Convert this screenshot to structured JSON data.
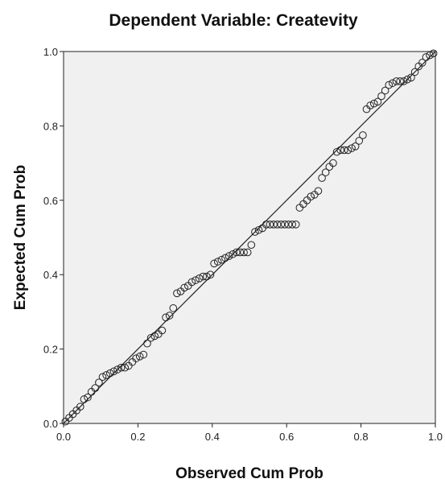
{
  "chart_data": {
    "type": "scatter",
    "title": "Dependent Variable: Createvity",
    "xlabel": "Observed Cum Prob",
    "ylabel": "Expected Cum Prob",
    "xlim": [
      0.0,
      1.0
    ],
    "ylim": [
      0.0,
      1.0
    ],
    "x_ticks": [
      "0.0",
      "0.2",
      "0.4",
      "0.6",
      "0.8",
      "1.0"
    ],
    "y_ticks": [
      "0.0",
      "0.2",
      "0.4",
      "0.6",
      "0.8",
      "1.0"
    ],
    "grid": false,
    "background": "#f0f0f0",
    "marker_color": "#222222",
    "reference_line": {
      "from": [
        0,
        0
      ],
      "to": [
        1,
        1
      ]
    },
    "series": [
      {
        "points": [
          [
            0.005,
            0.005
          ],
          [
            0.015,
            0.015
          ],
          [
            0.025,
            0.025
          ],
          [
            0.035,
            0.035
          ],
          [
            0.045,
            0.045
          ],
          [
            0.055,
            0.065
          ],
          [
            0.065,
            0.07
          ],
          [
            0.075,
            0.085
          ],
          [
            0.085,
            0.095
          ],
          [
            0.095,
            0.11
          ],
          [
            0.105,
            0.125
          ],
          [
            0.115,
            0.13
          ],
          [
            0.125,
            0.135
          ],
          [
            0.135,
            0.14
          ],
          [
            0.145,
            0.145
          ],
          [
            0.155,
            0.15
          ],
          [
            0.165,
            0.15
          ],
          [
            0.175,
            0.155
          ],
          [
            0.185,
            0.165
          ],
          [
            0.195,
            0.175
          ],
          [
            0.205,
            0.18
          ],
          [
            0.215,
            0.185
          ],
          [
            0.225,
            0.215
          ],
          [
            0.235,
            0.23
          ],
          [
            0.245,
            0.235
          ],
          [
            0.255,
            0.24
          ],
          [
            0.265,
            0.25
          ],
          [
            0.275,
            0.285
          ],
          [
            0.285,
            0.29
          ],
          [
            0.295,
            0.31
          ],
          [
            0.305,
            0.35
          ],
          [
            0.315,
            0.355
          ],
          [
            0.325,
            0.365
          ],
          [
            0.335,
            0.37
          ],
          [
            0.345,
            0.38
          ],
          [
            0.355,
            0.385
          ],
          [
            0.365,
            0.39
          ],
          [
            0.375,
            0.395
          ],
          [
            0.385,
            0.395
          ],
          [
            0.395,
            0.4
          ],
          [
            0.405,
            0.43
          ],
          [
            0.415,
            0.435
          ],
          [
            0.425,
            0.44
          ],
          [
            0.435,
            0.445
          ],
          [
            0.445,
            0.45
          ],
          [
            0.455,
            0.455
          ],
          [
            0.465,
            0.46
          ],
          [
            0.475,
            0.46
          ],
          [
            0.485,
            0.46
          ],
          [
            0.495,
            0.46
          ],
          [
            0.505,
            0.48
          ],
          [
            0.515,
            0.515
          ],
          [
            0.525,
            0.52
          ],
          [
            0.535,
            0.525
          ],
          [
            0.545,
            0.535
          ],
          [
            0.555,
            0.535
          ],
          [
            0.565,
            0.535
          ],
          [
            0.575,
            0.535
          ],
          [
            0.585,
            0.535
          ],
          [
            0.595,
            0.535
          ],
          [
            0.605,
            0.535
          ],
          [
            0.615,
            0.535
          ],
          [
            0.625,
            0.535
          ],
          [
            0.635,
            0.58
          ],
          [
            0.645,
            0.59
          ],
          [
            0.655,
            0.6
          ],
          [
            0.665,
            0.61
          ],
          [
            0.675,
            0.615
          ],
          [
            0.685,
            0.625
          ],
          [
            0.695,
            0.66
          ],
          [
            0.705,
            0.675
          ],
          [
            0.715,
            0.69
          ],
          [
            0.725,
            0.7
          ],
          [
            0.735,
            0.73
          ],
          [
            0.745,
            0.735
          ],
          [
            0.755,
            0.735
          ],
          [
            0.765,
            0.735
          ],
          [
            0.775,
            0.74
          ],
          [
            0.785,
            0.745
          ],
          [
            0.795,
            0.76
          ],
          [
            0.805,
            0.775
          ],
          [
            0.815,
            0.845
          ],
          [
            0.825,
            0.855
          ],
          [
            0.835,
            0.86
          ],
          [
            0.845,
            0.865
          ],
          [
            0.855,
            0.88
          ],
          [
            0.865,
            0.895
          ],
          [
            0.875,
            0.91
          ],
          [
            0.885,
            0.915
          ],
          [
            0.895,
            0.92
          ],
          [
            0.905,
            0.92
          ],
          [
            0.915,
            0.92
          ],
          [
            0.925,
            0.925
          ],
          [
            0.935,
            0.93
          ],
          [
            0.945,
            0.945
          ],
          [
            0.955,
            0.96
          ],
          [
            0.965,
            0.97
          ],
          [
            0.975,
            0.985
          ],
          [
            0.985,
            0.99
          ],
          [
            0.995,
            0.995
          ]
        ]
      }
    ]
  }
}
